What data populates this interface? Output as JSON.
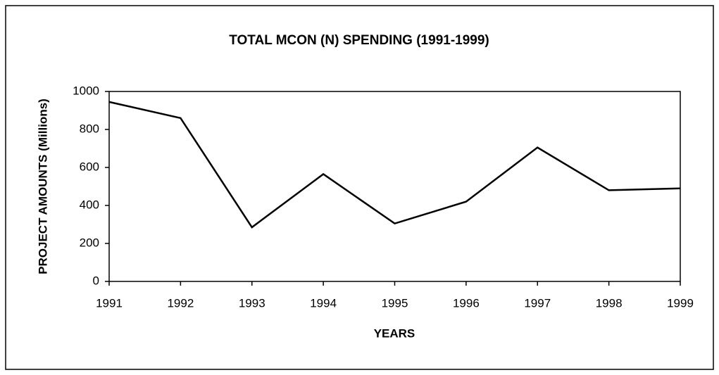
{
  "chart_data": {
    "type": "line",
    "title": "TOTAL MCON (N) SPENDING (1991-1999)",
    "xlabel": "YEARS",
    "ylabel": "PROJECT AMOUNTS (Millions)",
    "x": [
      1991,
      1992,
      1993,
      1994,
      1995,
      1996,
      1997,
      1998,
      1999
    ],
    "series": [
      {
        "color": "#000000",
        "values": [
          945,
          860,
          285,
          565,
          305,
          420,
          705,
          480,
          490
        ]
      }
    ],
    "xlim": [
      1991,
      1999
    ],
    "xticks": [
      1991,
      1992,
      1993,
      1994,
      1995,
      1996,
      1997,
      1998,
      1999
    ],
    "ylim": [
      0,
      1000
    ],
    "yticks": [
      0,
      200,
      400,
      600,
      800,
      1000
    ],
    "grid": false
  }
}
